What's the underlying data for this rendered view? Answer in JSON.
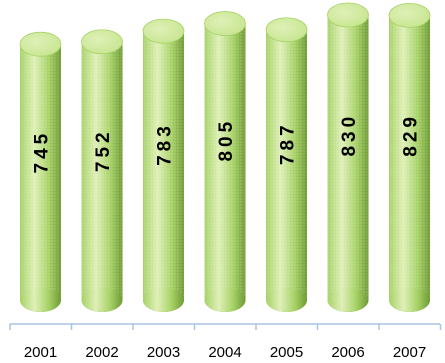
{
  "chart_data": {
    "type": "bar",
    "categories": [
      "2001",
      "2002",
      "2003",
      "2004",
      "2005",
      "2006",
      "2007"
    ],
    "values": [
      745,
      752,
      783,
      805,
      787,
      830,
      829
    ],
    "value_labels": [
      "745",
      "752",
      "783",
      "805",
      "787",
      "830",
      "829"
    ],
    "title": "",
    "xlabel": "",
    "ylabel": "",
    "ylim": [
      0,
      830
    ],
    "grid": false,
    "legend": "none",
    "style": "3d-cylinder",
    "colors": {
      "bar_light": "#dff0b8",
      "bar_mid": "#a7d267",
      "bar_dark": "#6f9a35",
      "bar_top": "#c6e58e",
      "axis": "#a8c4e0"
    }
  }
}
